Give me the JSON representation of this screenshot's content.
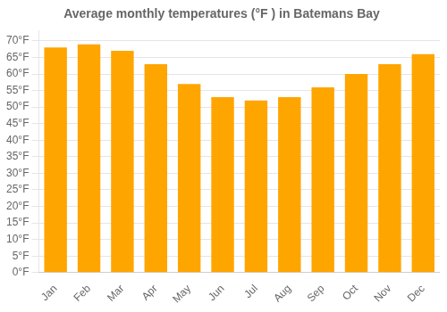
{
  "chart_data": {
    "type": "bar",
    "title": "Average monthly temperatures (°F ) in Batemans Bay",
    "categories": [
      "Jan",
      "Feb",
      "Mar",
      "Apr",
      "May",
      "Jun",
      "Jul",
      "Aug",
      "Sep",
      "Oct",
      "Nov",
      "Dec"
    ],
    "values": [
      68,
      69,
      67,
      63,
      57,
      53,
      52,
      53,
      56,
      60,
      63,
      66
    ],
    "color": "#FFA500",
    "ylim": [
      0,
      73
    ],
    "yticks": [
      {
        "value": 0,
        "label": "0°F"
      },
      {
        "value": 5,
        "label": "5°F"
      },
      {
        "value": 10,
        "label": "10°F"
      },
      {
        "value": 15,
        "label": "15°F"
      },
      {
        "value": 20,
        "label": "20°F"
      },
      {
        "value": 25,
        "label": "25°F"
      },
      {
        "value": 30,
        "label": "30°F"
      },
      {
        "value": 35,
        "label": "35°F"
      },
      {
        "value": 40,
        "label": "40°F"
      },
      {
        "value": 45,
        "label": "45°F"
      },
      {
        "value": 50,
        "label": "50°F"
      },
      {
        "value": 55,
        "label": "55°F"
      },
      {
        "value": 60,
        "label": "60°F"
      },
      {
        "value": 65,
        "label": "65°F"
      },
      {
        "value": 70,
        "label": "70°F"
      }
    ],
    "grid": true
  }
}
